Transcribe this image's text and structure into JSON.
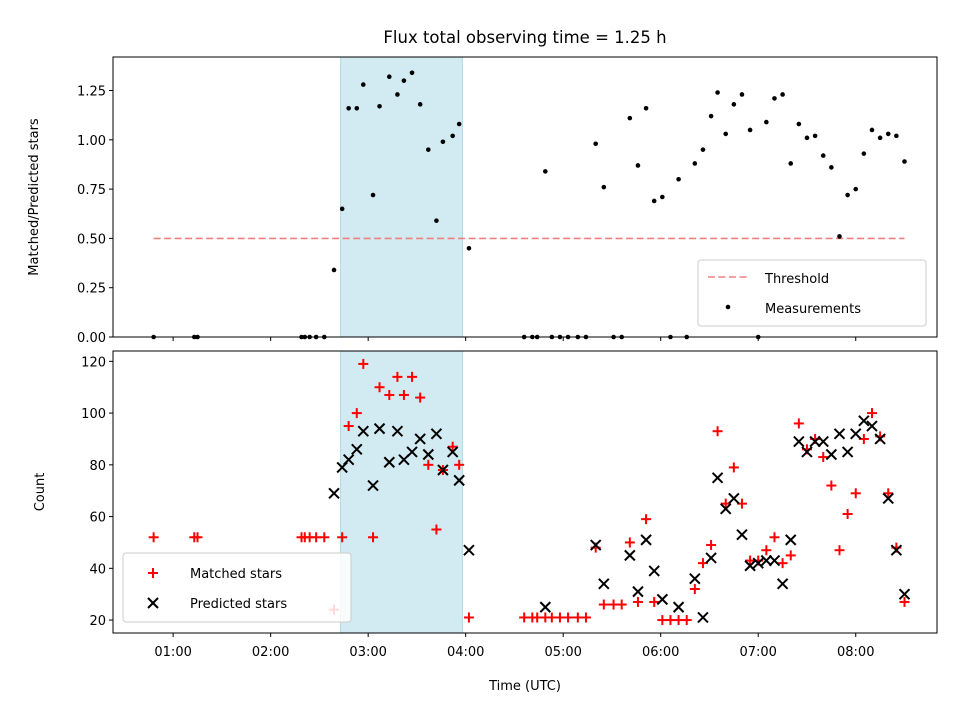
{
  "figure": {
    "title": "Flux total observing time = 1.25 h",
    "xlabel": "Time (UTC)"
  },
  "chart_data": [
    {
      "type": "scatter",
      "name": "ratio-panel",
      "ylabel": "Matched/Predicted stars",
      "xlim": [
        "00:23",
        "08:50"
      ],
      "ylim": [
        0,
        1.42
      ],
      "yticks": [
        "0.00",
        "0.25",
        "0.50",
        "0.75",
        "1.00",
        "1.25"
      ],
      "highlight_span": {
        "from": "02:43",
        "to": "03:58",
        "color": "#add8e6"
      },
      "threshold": {
        "name": "Threshold",
        "value": 0.5,
        "from": "00:48",
        "to": "08:30",
        "color": "#f08080"
      },
      "legend": {
        "position": "lower-right",
        "entries": [
          "Threshold",
          "Measurements"
        ]
      },
      "series": [
        {
          "name": "Measurements",
          "marker": "dot",
          "color": "#000000",
          "points": [
            [
              "00:48",
              0
            ],
            [
              "01:13",
              0
            ],
            [
              "01:15",
              0
            ],
            [
              "02:19",
              0
            ],
            [
              "02:21",
              0
            ],
            [
              "02:24",
              0
            ],
            [
              "02:28",
              0
            ],
            [
              "02:33",
              0
            ],
            [
              "02:39",
              0.34
            ],
            [
              "02:44",
              0.65
            ],
            [
              "02:48",
              1.16
            ],
            [
              "02:53",
              1.16
            ],
            [
              "02:57",
              1.28
            ],
            [
              "03:03",
              0.72
            ],
            [
              "03:07",
              1.17
            ],
            [
              "03:13",
              1.32
            ],
            [
              "03:18",
              1.23
            ],
            [
              "03:22",
              1.3
            ],
            [
              "03:27",
              1.34
            ],
            [
              "03:32",
              1.18
            ],
            [
              "03:37",
              0.95
            ],
            [
              "03:42",
              0.59
            ],
            [
              "03:46",
              0.99
            ],
            [
              "03:52",
              1.02
            ],
            [
              "03:56",
              1.08
            ],
            [
              "04:02",
              0.45
            ],
            [
              "04:36",
              0
            ],
            [
              "04:41",
              0
            ],
            [
              "04:44",
              0
            ],
            [
              "04:49",
              0.84
            ],
            [
              "04:53",
              0
            ],
            [
              "04:58",
              0
            ],
            [
              "05:03",
              0
            ],
            [
              "05:09",
              0
            ],
            [
              "05:14",
              0
            ],
            [
              "05:20",
              0.98
            ],
            [
              "05:25",
              0.76
            ],
            [
              "05:31",
              0
            ],
            [
              "05:36",
              0
            ],
            [
              "05:41",
              1.11
            ],
            [
              "05:46",
              0.87
            ],
            [
              "05:51",
              1.16
            ],
            [
              "05:56",
              0.69
            ],
            [
              "06:01",
              0.71
            ],
            [
              "06:06",
              0
            ],
            [
              "06:11",
              0.8
            ],
            [
              "06:16",
              0
            ],
            [
              "06:21",
              0.88
            ],
            [
              "06:26",
              0.95
            ],
            [
              "06:31",
              1.12
            ],
            [
              "06:35",
              1.24
            ],
            [
              "06:40",
              1.03
            ],
            [
              "06:45",
              1.18
            ],
            [
              "06:50",
              1.23
            ],
            [
              "06:55",
              1.05
            ],
            [
              "07:00",
              0
            ],
            [
              "07:05",
              1.09
            ],
            [
              "07:10",
              1.21
            ],
            [
              "07:15",
              1.23
            ],
            [
              "07:20",
              0.88
            ],
            [
              "07:25",
              1.08
            ],
            [
              "07:30",
              1.01
            ],
            [
              "07:35",
              1.02
            ],
            [
              "07:40",
              0.92
            ],
            [
              "07:45",
              0.86
            ],
            [
              "07:50",
              0.51
            ],
            [
              "07:55",
              0.72
            ],
            [
              "08:00",
              0.75
            ],
            [
              "08:05",
              0.93
            ],
            [
              "08:10",
              1.05
            ],
            [
              "08:15",
              1.01
            ],
            [
              "08:20",
              1.03
            ],
            [
              "08:25",
              1.02
            ],
            [
              "08:30",
              0.89
            ]
          ]
        }
      ]
    },
    {
      "type": "scatter",
      "name": "count-panel",
      "ylabel": "Count",
      "xlim": [
        "00:23",
        "08:50"
      ],
      "ylim": [
        15,
        124
      ],
      "yticks": [
        "20",
        "40",
        "60",
        "80",
        "100",
        "120"
      ],
      "xticks": [
        "01:00",
        "02:00",
        "03:00",
        "04:00",
        "05:00",
        "06:00",
        "07:00",
        "08:00"
      ],
      "highlight_span": {
        "from": "02:43",
        "to": "03:58",
        "color": "#add8e6"
      },
      "legend": {
        "position": "lower-left",
        "entries": [
          "Matched stars",
          "Predicted stars"
        ]
      },
      "series": [
        {
          "name": "Matched stars",
          "marker": "plus",
          "color": "#ff0000",
          "points": [
            [
              "00:48",
              52
            ],
            [
              "01:13",
              52
            ],
            [
              "01:15",
              52
            ],
            [
              "02:19",
              52
            ],
            [
              "02:21",
              52
            ],
            [
              "02:24",
              52
            ],
            [
              "02:28",
              52
            ],
            [
              "02:33",
              52
            ],
            [
              "02:39",
              24
            ],
            [
              "02:44",
              52
            ],
            [
              "02:48",
              95
            ],
            [
              "02:53",
              100
            ],
            [
              "02:57",
              119
            ],
            [
              "03:03",
              52
            ],
            [
              "03:07",
              110
            ],
            [
              "03:13",
              107
            ],
            [
              "03:18",
              114
            ],
            [
              "03:22",
              107
            ],
            [
              "03:27",
              114
            ],
            [
              "03:32",
              106
            ],
            [
              "03:37",
              80
            ],
            [
              "03:42",
              55
            ],
            [
              "03:46",
              78
            ],
            [
              "03:52",
              87
            ],
            [
              "03:56",
              80
            ],
            [
              "04:02",
              21
            ],
            [
              "04:36",
              21
            ],
            [
              "04:41",
              21
            ],
            [
              "04:44",
              21
            ],
            [
              "04:49",
              21
            ],
            [
              "04:53",
              21
            ],
            [
              "04:58",
              21
            ],
            [
              "05:03",
              21
            ],
            [
              "05:09",
              21
            ],
            [
              "05:14",
              21
            ],
            [
              "05:20",
              48
            ],
            [
              "05:25",
              26
            ],
            [
              "05:31",
              26
            ],
            [
              "05:36",
              26
            ],
            [
              "05:41",
              50
            ],
            [
              "05:46",
              27
            ],
            [
              "05:51",
              59
            ],
            [
              "05:56",
              27
            ],
            [
              "06:01",
              20
            ],
            [
              "06:06",
              20
            ],
            [
              "06:11",
              20
            ],
            [
              "06:16",
              20
            ],
            [
              "06:21",
              32
            ],
            [
              "06:26",
              42
            ],
            [
              "06:31",
              49
            ],
            [
              "06:35",
              93
            ],
            [
              "06:40",
              65
            ],
            [
              "06:45",
              79
            ],
            [
              "06:50",
              65
            ],
            [
              "06:55",
              43
            ],
            [
              "07:00",
              43
            ],
            [
              "07:05",
              47
            ],
            [
              "07:10",
              52
            ],
            [
              "07:15",
              42
            ],
            [
              "07:20",
              45
            ],
            [
              "07:25",
              96
            ],
            [
              "07:30",
              86
            ],
            [
              "07:35",
              90
            ],
            [
              "07:40",
              83
            ],
            [
              "07:45",
              72
            ],
            [
              "07:50",
              47
            ],
            [
              "07:55",
              61
            ],
            [
              "08:00",
              69
            ],
            [
              "08:05",
              90
            ],
            [
              "08:10",
              100
            ],
            [
              "08:15",
              91
            ],
            [
              "08:20",
              69
            ],
            [
              "08:25",
              48
            ],
            [
              "08:30",
              27
            ]
          ]
        },
        {
          "name": "Predicted stars",
          "marker": "x",
          "color": "#000000",
          "points": [
            [
              "02:39",
              69
            ],
            [
              "02:44",
              79
            ],
            [
              "02:48",
              82
            ],
            [
              "02:53",
              86
            ],
            [
              "02:57",
              93
            ],
            [
              "03:03",
              72
            ],
            [
              "03:07",
              94
            ],
            [
              "03:13",
              81
            ],
            [
              "03:18",
              93
            ],
            [
              "03:22",
              82
            ],
            [
              "03:27",
              85
            ],
            [
              "03:32",
              90
            ],
            [
              "03:37",
              84
            ],
            [
              "03:42",
              92
            ],
            [
              "03:46",
              78
            ],
            [
              "03:52",
              85
            ],
            [
              "03:56",
              74
            ],
            [
              "04:02",
              47
            ],
            [
              "04:49",
              25
            ],
            [
              "05:20",
              49
            ],
            [
              "05:25",
              34
            ],
            [
              "05:41",
              45
            ],
            [
              "05:46",
              31
            ],
            [
              "05:51",
              51
            ],
            [
              "05:56",
              39
            ],
            [
              "06:01",
              28
            ],
            [
              "06:11",
              25
            ],
            [
              "06:21",
              36
            ],
            [
              "06:26",
              21
            ],
            [
              "06:31",
              44
            ],
            [
              "06:35",
              75
            ],
            [
              "06:40",
              63
            ],
            [
              "06:45",
              67
            ],
            [
              "06:50",
              53
            ],
            [
              "06:55",
              41
            ],
            [
              "07:00",
              42
            ],
            [
              "07:05",
              43
            ],
            [
              "07:10",
              43
            ],
            [
              "07:15",
              34
            ],
            [
              "07:20",
              51
            ],
            [
              "07:25",
              89
            ],
            [
              "07:30",
              85
            ],
            [
              "07:35",
              89
            ],
            [
              "07:40",
              89
            ],
            [
              "07:45",
              84
            ],
            [
              "07:50",
              92
            ],
            [
              "07:55",
              85
            ],
            [
              "08:00",
              92
            ],
            [
              "08:05",
              97
            ],
            [
              "08:10",
              95
            ],
            [
              "08:15",
              90
            ],
            [
              "08:20",
              67
            ],
            [
              "08:25",
              47
            ],
            [
              "08:30",
              30
            ]
          ]
        }
      ]
    }
  ]
}
